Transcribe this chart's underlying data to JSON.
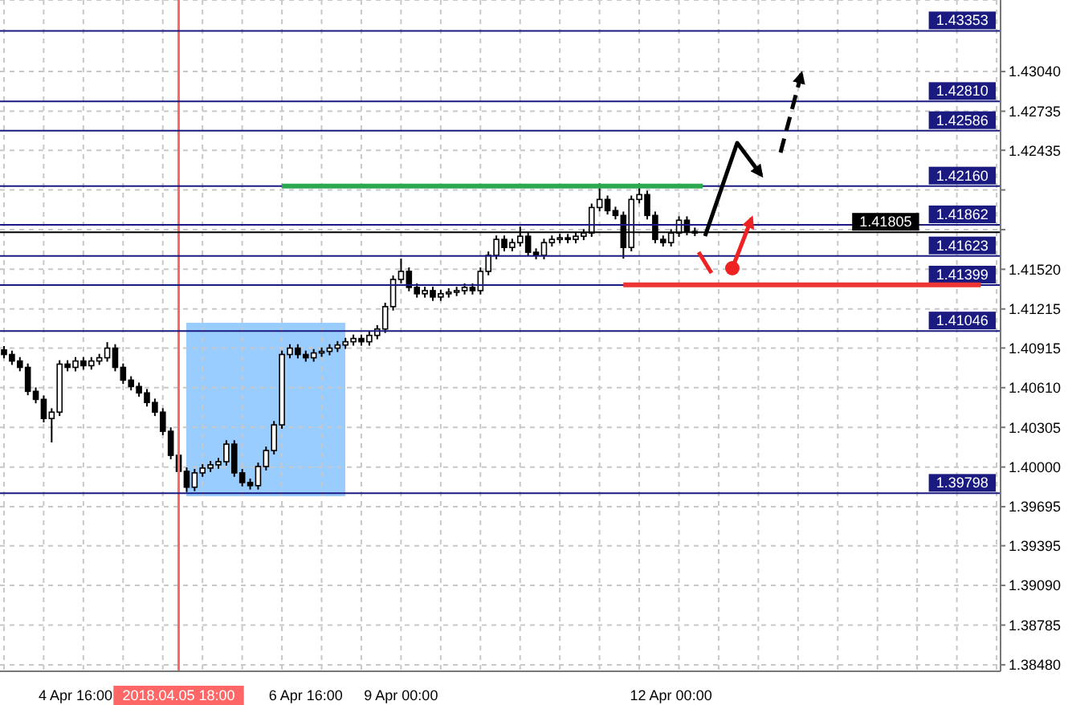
{
  "chart_data": {
    "type": "candlestick",
    "categories": [
      null,
      null,
      null,
      null,
      null,
      null,
      null,
      null,
      null,
      "4 Apr 16:00",
      null,
      null,
      null,
      null,
      null,
      null,
      null,
      null,
      null,
      null,
      null,
      null,
      "2018.04.05 18:00",
      null,
      null,
      null,
      null,
      null,
      null,
      null,
      null,
      null,
      null,
      null,
      null,
      null,
      null,
      null,
      "6 Apr 16:00",
      null,
      null,
      null,
      null,
      null,
      null,
      null,
      null,
      null,
      null,
      null,
      "9 Apr 00:00",
      null,
      null,
      null,
      null,
      null,
      null,
      null,
      null,
      null,
      null,
      null,
      null,
      null,
      null,
      null,
      null,
      null,
      null,
      null,
      null,
      null,
      null,
      null,
      null,
      null,
      null,
      null,
      null,
      null,
      null,
      null,
      null,
      null,
      "12 Apr 00:00",
      null,
      null,
      null,
      null,
      null,
      null,
      null,
      null,
      null,
      null,
      null,
      null,
      null,
      null,
      null,
      null,
      null,
      null,
      null,
      null,
      null,
      null,
      null,
      null,
      null,
      null,
      null,
      null,
      null,
      null,
      null,
      null,
      null,
      null,
      null,
      null,
      null,
      null,
      null,
      null,
      null
    ],
    "ohlc": [
      [
        1.409,
        1.4093,
        1.40835,
        1.40865
      ],
      [
        1.40865,
        1.40895,
        1.40785,
        1.40815
      ],
      [
        1.40815,
        1.40845,
        1.40736,
        1.40766
      ],
      [
        1.40766,
        1.40796,
        1.40552,
        1.40582
      ],
      [
        1.40582,
        1.40612,
        1.4049,
        1.4052
      ],
      [
        1.4052,
        1.4055,
        1.40343,
        1.40373
      ],
      [
        1.40373,
        1.40452,
        1.40189,
        1.40422
      ],
      [
        1.40422,
        1.40821,
        1.40392,
        1.40791
      ],
      [
        1.40791,
        1.40821,
        1.40736,
        1.40766
      ],
      [
        1.40766,
        1.40845,
        1.40736,
        1.40815
      ],
      [
        1.40815,
        1.40845,
        1.40749,
        1.40779
      ],
      [
        1.40779,
        1.40845,
        1.40749,
        1.40815
      ],
      [
        1.40815,
        1.4087,
        1.40785,
        1.4084
      ],
      [
        1.4084,
        1.4096,
        1.4081,
        1.40914
      ],
      [
        1.40914,
        1.40944,
        1.40736,
        1.40766
      ],
      [
        1.40766,
        1.40796,
        1.40638,
        1.40668
      ],
      [
        1.40668,
        1.40698,
        1.40589,
        1.40619
      ],
      [
        1.40619,
        1.40649,
        1.4054,
        1.4057
      ],
      [
        1.4057,
        1.406,
        1.40466,
        1.40496
      ],
      [
        1.40496,
        1.40526,
        1.40392,
        1.40422
      ],
      [
        1.40422,
        1.40452,
        1.40245,
        1.40275
      ],
      [
        1.40275,
        1.40305,
        1.4006,
        1.4009
      ],
      [
        1.4009,
        1.4012,
        1.39937,
        1.39967
      ],
      [
        1.39967,
        1.39997,
        1.39808,
        1.39845
      ],
      [
        1.39845,
        1.39985,
        1.39815,
        1.39955
      ],
      [
        1.39955,
        1.40022,
        1.39925,
        1.39992
      ],
      [
        1.39992,
        1.40047,
        1.39962,
        1.40017
      ],
      [
        1.40017,
        1.40071,
        1.39987,
        1.40041
      ],
      [
        1.40041,
        1.40206,
        1.40011,
        1.40176
      ],
      [
        1.40176,
        1.40206,
        1.39925,
        1.39955
      ],
      [
        1.39955,
        1.39985,
        1.39851,
        1.39881
      ],
      [
        1.39881,
        1.39911,
        1.39827,
        1.39857
      ],
      [
        1.39857,
        1.40034,
        1.39827,
        1.40004
      ],
      [
        1.40004,
        1.40157,
        1.39974,
        1.40127
      ],
      [
        1.40127,
        1.40354,
        1.40097,
        1.40324
      ],
      [
        1.40324,
        1.40895,
        1.40294,
        1.40865
      ],
      [
        1.40865,
        1.40944,
        1.40835,
        1.40914
      ],
      [
        1.40914,
        1.40944,
        1.40835,
        1.40865
      ],
      [
        1.40865,
        1.40895,
        1.4081,
        1.4084
      ],
      [
        1.4084,
        1.40907,
        1.4081,
        1.40877
      ],
      [
        1.40877,
        1.40919,
        1.40847,
        1.40889
      ],
      [
        1.40889,
        1.40944,
        1.40859,
        1.40914
      ],
      [
        1.40914,
        1.40968,
        1.40884,
        1.40938
      ],
      [
        1.40938,
        1.40993,
        1.40908,
        1.40963
      ],
      [
        1.40963,
        1.41018,
        1.40933,
        1.40988
      ],
      [
        1.40988,
        1.41018,
        1.40933,
        1.40963
      ],
      [
        1.40963,
        1.41042,
        1.40933,
        1.41012
      ],
      [
        1.41012,
        1.41091,
        1.40982,
        1.41061
      ],
      [
        1.41061,
        1.41263,
        1.41031,
        1.41233
      ],
      [
        1.41233,
        1.41472,
        1.41203,
        1.41442
      ],
      [
        1.41442,
        1.41602,
        1.41412,
        1.41504
      ],
      [
        1.41504,
        1.41534,
        1.41351,
        1.41381
      ],
      [
        1.41381,
        1.41411,
        1.41302,
        1.41332
      ],
      [
        1.41332,
        1.41386,
        1.41302,
        1.41356
      ],
      [
        1.41356,
        1.41386,
        1.41277,
        1.41307
      ],
      [
        1.41307,
        1.41362,
        1.41277,
        1.41332
      ],
      [
        1.41332,
        1.41374,
        1.41302,
        1.41344
      ],
      [
        1.41344,
        1.41386,
        1.41314,
        1.41356
      ],
      [
        1.41356,
        1.41411,
        1.41326,
        1.41381
      ],
      [
        1.41381,
        1.41411,
        1.41326,
        1.41356
      ],
      [
        1.41356,
        1.41534,
        1.41326,
        1.41504
      ],
      [
        1.41504,
        1.41657,
        1.41474,
        1.41627
      ],
      [
        1.41627,
        1.4178,
        1.41597,
        1.4175
      ],
      [
        1.4175,
        1.4178,
        1.41658,
        1.41688
      ],
      [
        1.41688,
        1.41755,
        1.41658,
        1.41725
      ],
      [
        1.41725,
        1.41848,
        1.41695,
        1.41774
      ],
      [
        1.41774,
        1.41804,
        1.41621,
        1.41651
      ],
      [
        1.41651,
        1.41681,
        1.41597,
        1.41627
      ],
      [
        1.41627,
        1.41755,
        1.41597,
        1.41725
      ],
      [
        1.41725,
        1.4178,
        1.41695,
        1.4175
      ],
      [
        1.4175,
        1.41792,
        1.4172,
        1.41762
      ],
      [
        1.41762,
        1.41792,
        1.4172,
        1.4175
      ],
      [
        1.4175,
        1.41804,
        1.4172,
        1.41774
      ],
      [
        1.41774,
        1.41829,
        1.41744,
        1.41799
      ],
      [
        1.41799,
        1.42025,
        1.41769,
        1.41995
      ],
      [
        1.41995,
        1.4218,
        1.41965,
        1.42057
      ],
      [
        1.42057,
        1.42087,
        1.41941,
        1.41971
      ],
      [
        1.41971,
        1.42001,
        1.41904,
        1.41934
      ],
      [
        1.41934,
        1.41964,
        1.41602,
        1.41688
      ],
      [
        1.41688,
        1.42087,
        1.41658,
        1.42057
      ],
      [
        1.42057,
        1.4218,
        1.42027,
        1.42094
      ],
      [
        1.42094,
        1.42124,
        1.41904,
        1.41934
      ],
      [
        1.41934,
        1.41964,
        1.4172,
        1.4175
      ],
      [
        1.4175,
        1.4178,
        1.41695,
        1.41725
      ],
      [
        1.41725,
        1.41829,
        1.41695,
        1.41799
      ],
      [
        1.41799,
        1.41927,
        1.41769,
        1.41897
      ],
      [
        1.41897,
        1.41927,
        1.41781,
        1.41811
      ],
      [
        1.41811,
        1.41841,
        1.41775,
        1.41805
      ],
      null,
      null,
      null,
      null,
      null,
      null,
      null,
      null,
      null,
      null,
      null,
      null,
      null,
      null,
      null,
      null,
      null,
      null,
      null,
      null,
      null,
      null,
      null,
      null,
      null,
      null,
      null,
      null,
      null,
      null,
      null,
      null,
      null,
      null,
      null,
      null,
      null,
      null
    ],
    "series": [
      {
        "type": "line",
        "color": "#2ca94f",
        "values": [
          null,
          null,
          null,
          null,
          null,
          null,
          null,
          null,
          null,
          null,
          null,
          null,
          null,
          null,
          null,
          null,
          null,
          null,
          null,
          null,
          null,
          null,
          null,
          null,
          null,
          null,
          null,
          null,
          null,
          null,
          null,
          null,
          null,
          null,
          null,
          1.4216,
          1.4216,
          1.4216,
          1.4216,
          1.4216,
          1.4216,
          1.4216,
          1.4216,
          1.4216,
          1.4216,
          1.4216,
          1.4216,
          1.4216,
          1.4216,
          1.4216,
          1.4216,
          1.4216,
          1.4216,
          1.4216,
          1.4216,
          1.4216,
          1.4216,
          1.4216,
          1.4216,
          1.4216,
          1.4216,
          1.4216,
          1.4216,
          1.4216,
          1.4216,
          1.4216,
          1.4216,
          1.4216,
          1.4216,
          1.4216,
          1.4216,
          1.4216,
          1.4216,
          1.4216,
          1.4216,
          1.4216,
          1.4216,
          1.4216,
          1.4216,
          1.4216,
          1.4216,
          1.4216,
          1.4216,
          1.4216,
          1.4216,
          1.4216,
          1.4216,
          1.4216,
          1.4216,
          null,
          null,
          null,
          null,
          null,
          null,
          null,
          null,
          null,
          null,
          null,
          null,
          null,
          null,
          null,
          null,
          null,
          null,
          null,
          null,
          null,
          null,
          null,
          null,
          null,
          null,
          null,
          null,
          null,
          null,
          null,
          null,
          null,
          null,
          null,
          null,
          null
        ]
      },
      {
        "type": "line",
        "color": "#ee3333",
        "values": [
          null,
          null,
          null,
          null,
          null,
          null,
          null,
          null,
          null,
          null,
          null,
          null,
          null,
          null,
          null,
          null,
          null,
          null,
          null,
          null,
          null,
          null,
          null,
          null,
          null,
          null,
          null,
          null,
          null,
          null,
          null,
          null,
          null,
          null,
          null,
          null,
          null,
          null,
          null,
          null,
          null,
          null,
          null,
          null,
          null,
          null,
          null,
          null,
          null,
          null,
          null,
          null,
          null,
          null,
          null,
          null,
          null,
          null,
          null,
          null,
          null,
          null,
          null,
          null,
          null,
          null,
          null,
          null,
          null,
          null,
          null,
          null,
          null,
          null,
          null,
          null,
          null,
          null,
          1.414,
          1.414,
          1.414,
          1.414,
          1.414,
          1.414,
          1.414,
          1.414,
          1.414,
          1.414,
          1.414,
          1.414,
          1.414,
          1.414,
          1.414,
          1.414,
          1.414,
          1.414,
          1.414,
          1.414,
          1.414,
          1.414,
          1.414,
          1.414,
          1.414,
          1.414,
          1.414,
          1.414,
          1.414,
          1.414,
          1.414,
          1.414,
          1.414,
          1.414,
          1.414,
          1.414,
          1.414,
          1.414,
          1.414,
          1.414,
          1.414,
          1.414,
          1.414,
          1.414,
          1.414,
          1.414,
          null,
          null
        ]
      }
    ],
    "ylim": [
      1.3843,
      1.4359
    ],
    "yticks": [
      {
        "value": 1.3848,
        "label": "1.38480"
      },
      {
        "value": 1.38785,
        "label": "1.38785"
      },
      {
        "value": 1.3909,
        "label": "1.39090"
      },
      {
        "value": 1.39395,
        "label": "1.39395"
      },
      {
        "value": 1.39695,
        "label": "1.39695"
      },
      {
        "value": 1.4,
        "label": "1.40000"
      },
      {
        "value": 1.40305,
        "label": "1.40305"
      },
      {
        "value": 1.4061,
        "label": "1.40610"
      },
      {
        "value": 1.40915,
        "label": "1.40915"
      },
      {
        "value": 1.41215,
        "label": "1.41215"
      },
      {
        "value": 1.4152,
        "label": "1.41520"
      },
      {
        "value": 1.41825,
        "label": null
      },
      {
        "value": 1.4213,
        "label": null
      },
      {
        "value": 1.42435,
        "label": "1.42435"
      },
      {
        "value": 1.42735,
        "label": "1.42735"
      },
      {
        "value": 1.4304,
        "label": "1.43040"
      }
    ],
    "grid": true,
    "ref_lines": [
      {
        "axis": "x",
        "value": "2018.04.05 18:00",
        "color": "#ff6666"
      },
      {
        "axis": "y",
        "value": 1.43353,
        "label": "1.43353",
        "color": "#1a1a80"
      },
      {
        "axis": "y",
        "value": 1.4281,
        "label": "1.42810",
        "color": "#1a1a80"
      },
      {
        "axis": "y",
        "value": 1.42586,
        "label": "1.42586",
        "color": "#1a1a80"
      },
      {
        "axis": "y",
        "value": 1.4216,
        "label": "1.42160",
        "color": "#1a1a80"
      },
      {
        "axis": "y",
        "value": 1.41862,
        "label": "1.41862",
        "color": "#1a1a80"
      },
      {
        "axis": "y",
        "value": 1.41805,
        "label": "1.41805",
        "color": "#000000"
      },
      {
        "axis": "y",
        "value": 1.41623,
        "label": "1.41623",
        "color": "#1a1a80"
      },
      {
        "axis": "y",
        "value": 1.41399,
        "label": "1.41399",
        "color": "#1a1a80"
      },
      {
        "axis": "y",
        "value": 1.41046,
        "label": "1.41046",
        "color": "#1a1a80"
      },
      {
        "axis": "y",
        "value": 1.39798,
        "label": "1.39798",
        "color": "#1a1a80"
      }
    ]
  }
}
